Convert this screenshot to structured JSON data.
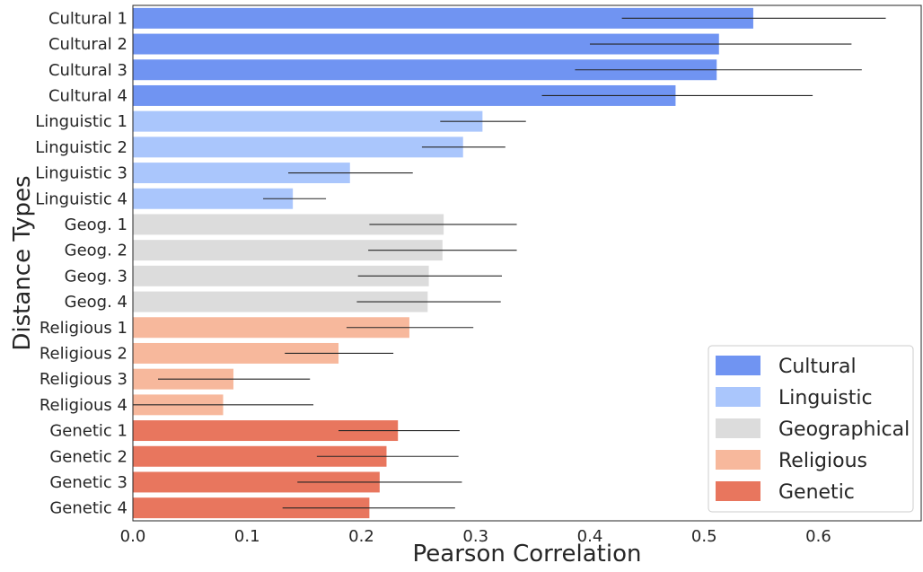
{
  "chart_data": {
    "type": "bar",
    "orientation": "horizontal",
    "xlabel": "Pearson Correlation",
    "ylabel": "Distance Types",
    "xlim": [
      0.0,
      0.69
    ],
    "xticks": [
      "0.0",
      "0.1",
      "0.2",
      "0.3",
      "0.4",
      "0.5",
      "0.6"
    ],
    "grid": false,
    "legend_position": "bottom-right",
    "groups": [
      {
        "name": "Cultural",
        "color": "#7094f2"
      },
      {
        "name": "Linguistic",
        "color": "#aac6fc"
      },
      {
        "name": "Geographical",
        "color": "#dcdcdc"
      },
      {
        "name": "Religious",
        "color": "#f7b89c"
      },
      {
        "name": "Genetic",
        "color": "#e8765e"
      }
    ],
    "bars": [
      {
        "label": "Cultural 1",
        "group": 0,
        "value": 0.543,
        "err": [
          0.428,
          0.659
        ]
      },
      {
        "label": "Cultural 2",
        "group": 0,
        "value": 0.513,
        "err": [
          0.4,
          0.629
        ]
      },
      {
        "label": "Cultural 3",
        "group": 0,
        "value": 0.511,
        "err": [
          0.387,
          0.638
        ]
      },
      {
        "label": "Cultural 4",
        "group": 0,
        "value": 0.475,
        "err": [
          0.358,
          0.595
        ]
      },
      {
        "label": "Linguistic 1",
        "group": 1,
        "value": 0.306,
        "err": [
          0.269,
          0.344
        ]
      },
      {
        "label": "Linguistic 2",
        "group": 1,
        "value": 0.289,
        "err": [
          0.253,
          0.326
        ]
      },
      {
        "label": "Linguistic 3",
        "group": 1,
        "value": 0.19,
        "err": [
          0.136,
          0.245
        ]
      },
      {
        "label": "Linguistic 4",
        "group": 1,
        "value": 0.14,
        "err": [
          0.114,
          0.169
        ]
      },
      {
        "label": "Geog. 1",
        "group": 2,
        "value": 0.272,
        "err": [
          0.207,
          0.336
        ]
      },
      {
        "label": "Geog. 2",
        "group": 2,
        "value": 0.271,
        "err": [
          0.206,
          0.336
        ]
      },
      {
        "label": "Geog. 3",
        "group": 2,
        "value": 0.259,
        "err": [
          0.197,
          0.323
        ]
      },
      {
        "label": "Geog. 4",
        "group": 2,
        "value": 0.258,
        "err": [
          0.196,
          0.322
        ]
      },
      {
        "label": "Religious 1",
        "group": 3,
        "value": 0.242,
        "err": [
          0.187,
          0.298
        ]
      },
      {
        "label": "Religious 2",
        "group": 3,
        "value": 0.18,
        "err": [
          0.133,
          0.228
        ]
      },
      {
        "label": "Religious 3",
        "group": 3,
        "value": 0.088,
        "err": [
          0.022,
          0.155
        ]
      },
      {
        "label": "Religious 4",
        "group": 3,
        "value": 0.079,
        "err": [
          0.0,
          0.158
        ]
      },
      {
        "label": "Genetic 1",
        "group": 4,
        "value": 0.232,
        "err": [
          0.18,
          0.286
        ]
      },
      {
        "label": "Genetic 2",
        "group": 4,
        "value": 0.222,
        "err": [
          0.161,
          0.285
        ]
      },
      {
        "label": "Genetic 3",
        "group": 4,
        "value": 0.216,
        "err": [
          0.144,
          0.288
        ]
      },
      {
        "label": "Genetic 4",
        "group": 4,
        "value": 0.207,
        "err": [
          0.131,
          0.282
        ]
      }
    ]
  }
}
